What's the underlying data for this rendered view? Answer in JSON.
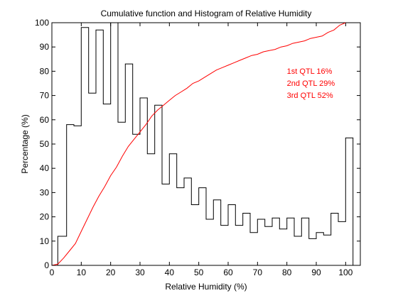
{
  "chart_data": {
    "type": "bar",
    "title": "Cumulative function and Histogram of Relative Humidity",
    "xlabel": "Relative Humidity (%)",
    "ylabel": "Percentage (%)",
    "xlim": [
      0,
      105
    ],
    "ylim": [
      0,
      100
    ],
    "grid": false,
    "xticks": [
      0,
      10,
      20,
      30,
      40,
      50,
      60,
      70,
      80,
      90,
      100
    ],
    "yticks": [
      0,
      10,
      20,
      30,
      40,
      50,
      60,
      70,
      80,
      90,
      100
    ],
    "series": [
      {
        "kind": "histogram-stairs",
        "color": "#000000",
        "bin_edges": [
          0,
          2,
          5,
          7.5,
          10,
          12.5,
          15,
          17.5,
          20,
          22.5,
          25,
          27.5,
          30,
          32.5,
          35,
          37.5,
          40,
          42.5,
          45,
          47.5,
          50,
          52.5,
          55,
          57.5,
          60,
          62.5,
          65,
          67.5,
          70,
          72.5,
          75,
          77.5,
          80,
          82.5,
          85,
          87.5,
          90,
          92.5,
          95,
          97.5,
          100,
          102.5
        ],
        "values": [
          0,
          12,
          58,
          57.5,
          98,
          71,
          97,
          66.5,
          100,
          59,
          83,
          54,
          69,
          46,
          66,
          33.5,
          46,
          32,
          36,
          25,
          32,
          19,
          27,
          16.5,
          25,
          16.5,
          21.5,
          13.5,
          19,
          16,
          19.5,
          15,
          19.5,
          12,
          19.5,
          11,
          13.5,
          12.5,
          21.5,
          18,
          52.5
        ]
      },
      {
        "kind": "cdf-line",
        "color": "#ff0000",
        "x": [
          0,
          2,
          4,
          6,
          8,
          10,
          12,
          14,
          16,
          18,
          20,
          22,
          24,
          26,
          28,
          30,
          32,
          34,
          36,
          38,
          40,
          42,
          44,
          46,
          48,
          50,
          52,
          54,
          56,
          58,
          60,
          62,
          64,
          66,
          68,
          70,
          72,
          74,
          76,
          78,
          80,
          82,
          84,
          86,
          88,
          90,
          92,
          94,
          96,
          98,
          100
        ],
        "y": [
          0,
          0.5,
          3,
          6,
          9,
          14,
          19,
          24,
          28.5,
          32.5,
          37,
          40.5,
          45,
          49,
          52,
          55,
          58,
          61.5,
          64,
          66,
          68,
          70,
          71.5,
          73,
          75,
          76,
          77.5,
          79,
          80.5,
          81.5,
          82.5,
          83.5,
          84.5,
          85.5,
          86.5,
          87,
          88,
          88.5,
          89,
          90,
          90.5,
          91.5,
          92,
          92.5,
          93.5,
          94,
          94.5,
          96,
          97,
          99,
          100
        ]
      }
    ],
    "annotations": [
      {
        "text": "1st QTL  16%",
        "x": 80,
        "y": 79,
        "color": "#ff0000"
      },
      {
        "text": "2nd QTL  29%",
        "x": 80,
        "y": 74,
        "color": "#ff0000"
      },
      {
        "text": "3rd QTL  52%",
        "x": 80,
        "y": 69,
        "color": "#ff0000"
      }
    ]
  }
}
